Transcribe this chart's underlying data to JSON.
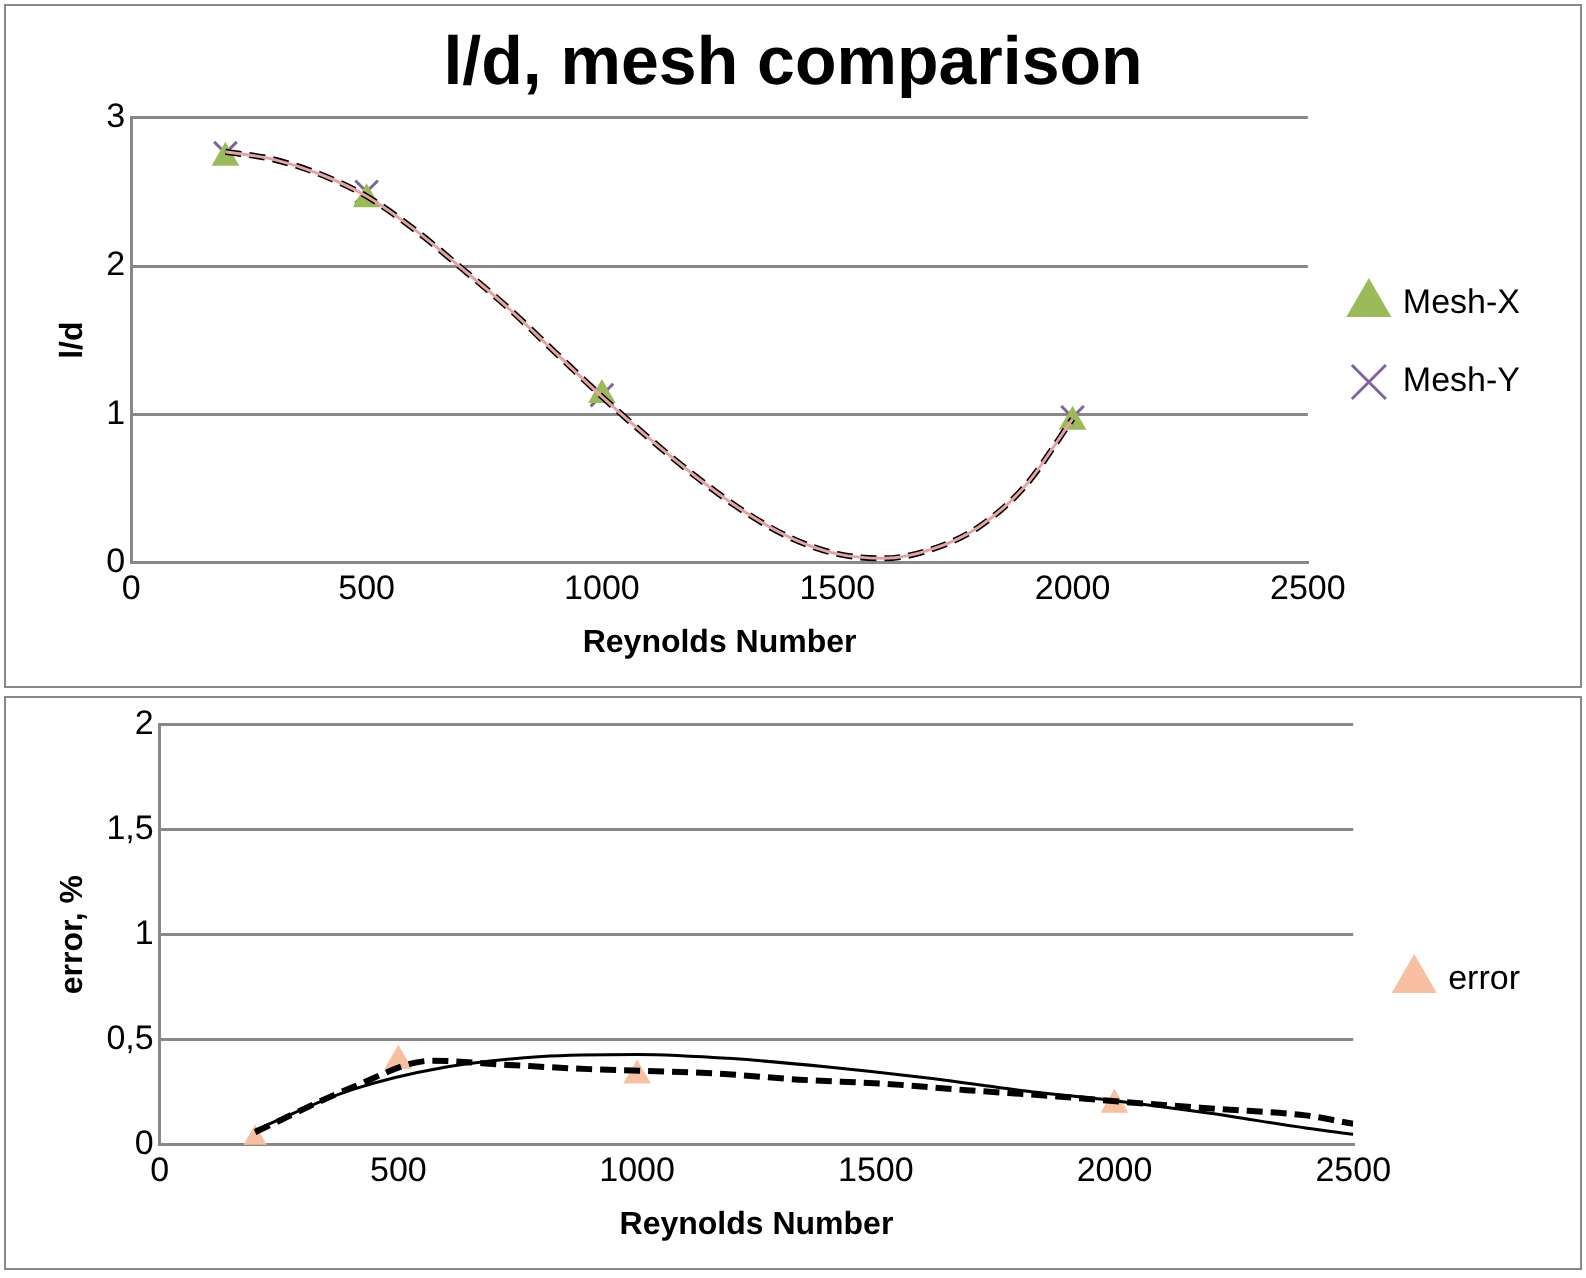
{
  "chart_data": [
    {
      "type": "scatter",
      "title": "l/d, mesh comparison",
      "xlabel": "Reynolds Number",
      "ylabel": "l/d",
      "xlim": [
        0,
        2500
      ],
      "xticks": [
        0,
        500,
        1000,
        1500,
        2000,
        2500
      ],
      "ylim": [
        0,
        3
      ],
      "yticks": [
        0,
        1,
        2,
        3
      ],
      "grid": "y",
      "legend": "right",
      "series": [
        {
          "name": "Mesh-X",
          "color": "#9bbb59",
          "marker": "triangle",
          "x": [
            200,
            500,
            1000,
            2000
          ],
          "values": [
            2.73,
            2.45,
            1.13,
            0.95
          ]
        },
        {
          "name": "Mesh-Y",
          "color": "#8064a2",
          "marker": "cross",
          "x": [
            200,
            500,
            1000,
            2000
          ],
          "values": [
            2.76,
            2.5,
            1.13,
            0.98
          ]
        },
        {
          "type": "line",
          "color": "#e6a3a3",
          "line_style": "solid",
          "x": [
            200,
            300,
            400,
            500,
            600,
            700,
            800,
            900,
            1000,
            1100,
            1200,
            1300,
            1400,
            1500,
            1600,
            1700,
            1800,
            1900,
            2000
          ],
          "values": [
            2.77,
            2.72,
            2.62,
            2.47,
            2.25,
            1.99,
            1.72,
            1.42,
            1.12,
            0.84,
            0.58,
            0.35,
            0.17,
            0.06,
            0.03,
            0.09,
            0.24,
            0.52,
            0.97
          ]
        },
        {
          "type": "line",
          "color": "#000000",
          "line_style": "dashed",
          "x": [
            200,
            300,
            400,
            500,
            600,
            700,
            800,
            900,
            1000,
            1100,
            1200,
            1300,
            1400,
            1500,
            1600,
            1700,
            1800,
            1900,
            2000
          ],
          "values": [
            2.77,
            2.72,
            2.62,
            2.47,
            2.25,
            1.99,
            1.72,
            1.42,
            1.12,
            0.84,
            0.58,
            0.35,
            0.17,
            0.06,
            0.03,
            0.09,
            0.24,
            0.52,
            0.97
          ]
        }
      ]
    },
    {
      "type": "scatter",
      "xlabel": "Reynolds Number",
      "ylabel": "error, %",
      "xlim": [
        0,
        2500
      ],
      "xticks": [
        0,
        500,
        1000,
        1500,
        2000,
        2500
      ],
      "ylim": [
        0,
        2
      ],
      "yticks": [
        0,
        {
          "value": 0.5,
          "label": "0,5"
        },
        1,
        {
          "value": 1.5,
          "label": "1,5"
        },
        2
      ],
      "grid": "y",
      "legend": "right",
      "series": [
        {
          "name": "error",
          "color": "#f8c0a0",
          "marker": "triangle",
          "x": [
            200,
            500,
            1000,
            2000
          ],
          "values": [
            0.02,
            0.4,
            0.33,
            0.19
          ]
        },
        {
          "type": "line",
          "color": "#000000",
          "line_style": "dashed",
          "x": [
            200,
            400,
            570,
            730,
            900,
            1160,
            1340,
            1520,
            1690,
            1880,
            2040,
            2220,
            2400,
            2500
          ],
          "values": [
            0.06,
            0.27,
            0.4,
            0.38,
            0.36,
            0.34,
            0.31,
            0.29,
            0.26,
            0.23,
            0.2,
            0.17,
            0.14,
            0.1
          ]
        },
        {
          "type": "line",
          "color": "#000000",
          "line_style": "solid",
          "x": [
            200,
            400,
            600,
            800,
            1000,
            1200,
            1400,
            1600,
            1800,
            2000,
            2200,
            2400,
            2500
          ],
          "values": [
            0.07,
            0.26,
            0.37,
            0.42,
            0.43,
            0.41,
            0.37,
            0.32,
            0.26,
            0.21,
            0.15,
            0.08,
            0.05
          ]
        }
      ]
    }
  ]
}
